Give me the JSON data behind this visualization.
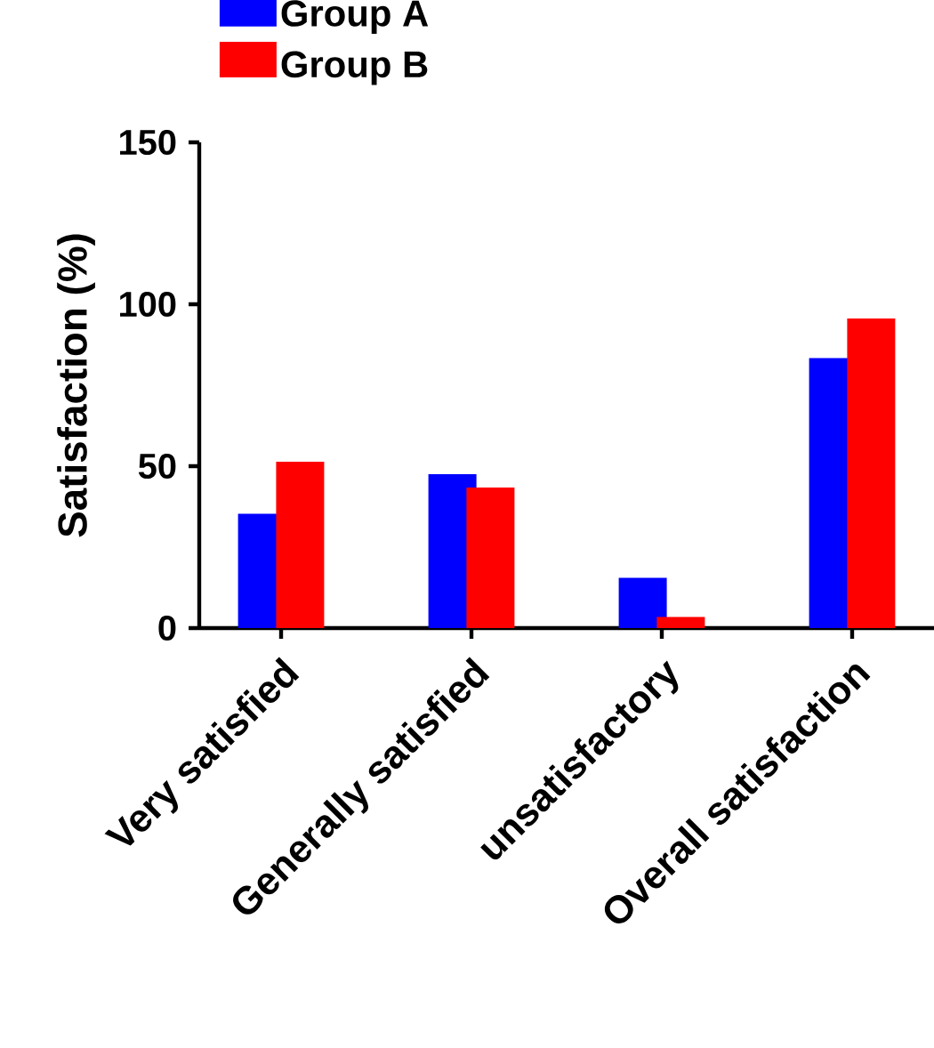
{
  "chart_data": {
    "type": "bar",
    "ylabel": "Satisfaction (%)",
    "categories": [
      "Very satisfied",
      "Generally satisfied",
      "unsatisfactory",
      "Overall satisfaction"
    ],
    "series": [
      {
        "name": "Group A",
        "color": "#0000ff",
        "values": [
          35.3,
          47.5,
          15.5,
          83.4
        ]
      },
      {
        "name": "Group B",
        "color": "#ff0000",
        "values": [
          51.4,
          43.4,
          3.4,
          95.6
        ]
      }
    ],
    "ylim": [
      0,
      150
    ],
    "yticks": [
      0,
      50,
      100,
      150
    ],
    "grid": false,
    "legend": "top left"
  }
}
